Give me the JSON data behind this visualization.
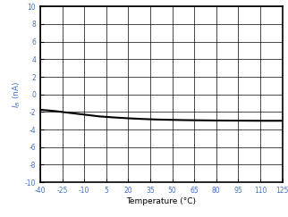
{
  "title": "",
  "xlabel": "Temperature (°C)",
  "ylabel_text": "$I_{B}$ (nA)",
  "xlim": [
    -40,
    125
  ],
  "ylim": [
    -10,
    10
  ],
  "xticks": [
    -40,
    -25,
    -10,
    5,
    20,
    35,
    50,
    65,
    80,
    95,
    110,
    125
  ],
  "yticks": [
    -10,
    -8,
    -6,
    -4,
    -2,
    0,
    2,
    4,
    6,
    8,
    10
  ],
  "line_x": [
    -40,
    -35,
    -30,
    -25,
    -20,
    -15,
    -10,
    -5,
    0,
    10,
    20,
    30,
    40,
    50,
    60,
    70,
    80,
    90,
    100,
    110,
    120,
    125
  ],
  "line_y": [
    -1.75,
    -1.82,
    -1.9,
    -2.0,
    -2.1,
    -2.2,
    -2.3,
    -2.4,
    -2.5,
    -2.62,
    -2.72,
    -2.8,
    -2.86,
    -2.9,
    -2.93,
    -2.95,
    -2.97,
    -2.98,
    -2.99,
    -3.0,
    -3.0,
    -3.0
  ],
  "line_color": "#000000",
  "line_width": 1.5,
  "bg_color": "#ffffff",
  "grid_color": "#888888",
  "label_color": "#4472c4",
  "tick_label_color": "#4472c4",
  "xlabel_color": "#000000"
}
